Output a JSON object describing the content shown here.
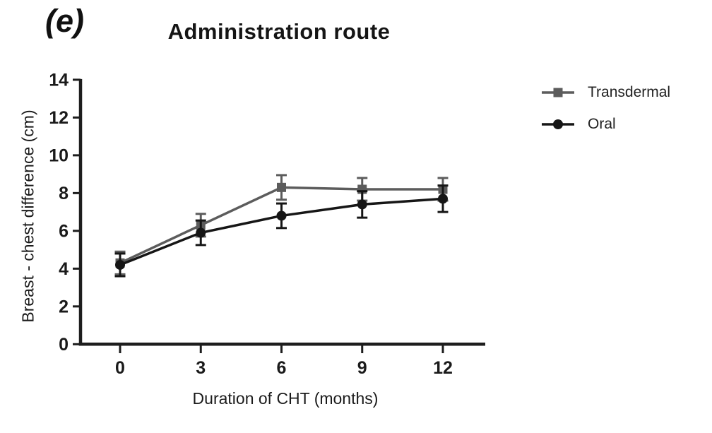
{
  "figure": {
    "panel_label": "(e)",
    "background": "#ffffff"
  },
  "chart_data": {
    "type": "line",
    "title": "Administration route",
    "xlabel": "Duration of CHT (months)",
    "ylabel": "Breast - chest difference (cm)",
    "x": [
      0,
      3,
      6,
      9,
      12
    ],
    "xtick_labels": [
      "0",
      "3",
      "6",
      "9",
      "12"
    ],
    "yticks": [
      0,
      2,
      4,
      6,
      8,
      10,
      12,
      14
    ],
    "ylim": [
      0,
      14
    ],
    "xlim": [
      -1.5,
      13.5
    ],
    "grid": false,
    "error_bars": true,
    "legend_position": "right-of-plot",
    "axis_color": "#1d1d1d",
    "tick_label_color": "#1a1a1a",
    "series": [
      {
        "name": "Transdermal",
        "marker": "square",
        "color": "#5c5c5c",
        "values": [
          4.3,
          6.3,
          8.3,
          8.2,
          8.2
        ],
        "errors": [
          0.6,
          0.6,
          0.65,
          0.6,
          0.6
        ]
      },
      {
        "name": "Oral",
        "marker": "circle",
        "color": "#161616",
        "values": [
          4.2,
          5.9,
          6.8,
          7.4,
          7.7
        ],
        "errors": [
          0.6,
          0.65,
          0.65,
          0.7,
          0.7
        ]
      }
    ]
  }
}
